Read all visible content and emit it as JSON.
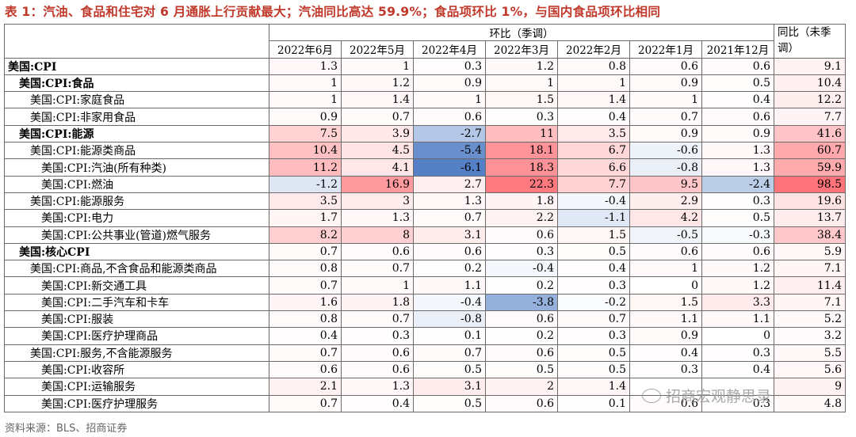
{
  "title": "表 1：汽油、食品和住宅对 6 月通胀上行贡献最大；汽油同比高达 59.9%；食品项环比 1%，与国内食品项环比相同",
  "header": {
    "group_label": "环比（季调）",
    "yoy_label": "同比（未季调）",
    "columns": [
      "2022年6月",
      "2022年5月",
      "2022年4月",
      "2022年3月",
      "2022年2月",
      "2022年1月",
      "2021年12月"
    ]
  },
  "rows": [
    {
      "label": "美国:CPI",
      "level": 0,
      "bold": true,
      "mom": [
        "1.3",
        "1",
        "0.3",
        "1.2",
        "0.8",
        "0.6",
        "0.6"
      ],
      "yoy": "9.1"
    },
    {
      "label": "美国:CPI:食品",
      "level": 1,
      "bold": true,
      "mom": [
        "1",
        "1.2",
        "0.9",
        "1",
        "1",
        "0.9",
        "0.5"
      ],
      "yoy": "10.4"
    },
    {
      "label": "美国:CPI:家庭食品",
      "level": 2,
      "bold": false,
      "mom": [
        "1",
        "1.4",
        "1",
        "1.5",
        "1.4",
        "1",
        "0.4"
      ],
      "yoy": "12.2"
    },
    {
      "label": "美国:CPI:非家用食品",
      "level": 2,
      "bold": false,
      "mom": [
        "0.9",
        "0.7",
        "0.6",
        "0.3",
        "0.4",
        "0.7",
        "0.6"
      ],
      "yoy": "7.7"
    },
    {
      "label": "美国:CPI:能源",
      "level": 1,
      "bold": true,
      "mom": [
        "7.5",
        "3.9",
        "-2.7",
        "11",
        "3.5",
        "0.9",
        "0.9"
      ],
      "yoy": "41.6"
    },
    {
      "label": "美国:CPI:能源类商品",
      "level": 2,
      "bold": false,
      "mom": [
        "10.4",
        "4.5",
        "-5.4",
        "18.1",
        "6.7",
        "-0.6",
        "1.3"
      ],
      "yoy": "60.7"
    },
    {
      "label": "美国:CPI:汽油(所有种类)",
      "level": 3,
      "bold": false,
      "mom": [
        "11.2",
        "4.1",
        "-6.1",
        "18.3",
        "6.6",
        "-0.8",
        "1.3"
      ],
      "yoy": "59.9"
    },
    {
      "label": "美国:CPI:燃油",
      "level": 3,
      "bold": false,
      "mom": [
        "-1.2",
        "16.9",
        "2.7",
        "22.3",
        "7.7",
        "9.5",
        "-2.4"
      ],
      "yoy": "98.5"
    },
    {
      "label": "美国:CPI:能源服务",
      "level": 2,
      "bold": false,
      "mom": [
        "3.5",
        "3",
        "1.3",
        "1.8",
        "-0.4",
        "2.9",
        "0.3"
      ],
      "yoy": "19.6"
    },
    {
      "label": "美国:CPI:电力",
      "level": 3,
      "bold": false,
      "mom": [
        "1.7",
        "1.3",
        "0.7",
        "2.2",
        "-1.1",
        "4.2",
        "0.5"
      ],
      "yoy": "13.7"
    },
    {
      "label": "美国:CPI:公共事业(管道)燃气服务",
      "level": 3,
      "bold": false,
      "mom": [
        "8.2",
        "8",
        "3.1",
        "0.6",
        "1.5",
        "-0.5",
        "-0.3"
      ],
      "yoy": "38.4"
    },
    {
      "label": "美国:核心CPI",
      "level": 1,
      "bold": true,
      "mom": [
        "0.7",
        "0.6",
        "0.6",
        "0.3",
        "0.5",
        "0.6",
        "0.6"
      ],
      "yoy": "5.9"
    },
    {
      "label": "美国:CPI:商品,不含食品和能源类商品",
      "level": 2,
      "bold": false,
      "mom": [
        "0.8",
        "0.7",
        "0.2",
        "-0.4",
        "0.4",
        "1",
        "1.2"
      ],
      "yoy": "7.1"
    },
    {
      "label": "美国:CPI:新交通工具",
      "level": 3,
      "bold": false,
      "mom": [
        "0.7",
        "1",
        "1.1",
        "0.2",
        "0.3",
        "0",
        "1.2"
      ],
      "yoy": "11.4"
    },
    {
      "label": "美国:CPI:二手汽车和卡车",
      "level": 3,
      "bold": false,
      "mom": [
        "1.6",
        "1.8",
        "-0.4",
        "-3.8",
        "-0.2",
        "1.5",
        "3.3"
      ],
      "yoy": "7.1"
    },
    {
      "label": "美国:CPI:服装",
      "level": 3,
      "bold": false,
      "mom": [
        "0.8",
        "0.7",
        "-0.8",
        "0.6",
        "0.7",
        "1.1",
        "1.1"
      ],
      "yoy": "5.2"
    },
    {
      "label": "美国:CPI:医疗护理商品",
      "level": 3,
      "bold": false,
      "mom": [
        "0.4",
        "0.3",
        "0.1",
        "0.2",
        "0.3",
        "0.9",
        "0"
      ],
      "yoy": "3.2"
    },
    {
      "label": "美国:CPI:服务,不含能源服务",
      "level": 2,
      "bold": false,
      "mom": [
        "0.7",
        "0.6",
        "0.7",
        "0.6",
        "0.5",
        "0.4",
        "0.3"
      ],
      "yoy": "5.5"
    },
    {
      "label": "美国:CPI:收容所",
      "level": 3,
      "bold": false,
      "mom": [
        "0.6",
        "0.6",
        "0.5",
        "0.5",
        "0.5",
        "0.3",
        "0.4"
      ],
      "yoy": "5.6"
    },
    {
      "label": "美国:CPI:运输服务",
      "level": 3,
      "bold": false,
      "mom": [
        "2.1",
        "1.3",
        "3.1",
        "2",
        "1.4",
        "",
        ""
      ],
      "yoy": "9"
    },
    {
      "label": "美国:CPI:医疗护理服务",
      "level": 3,
      "bold": false,
      "mom": [
        "0.7",
        "0.4",
        "0.5",
        "0.6",
        "0.1",
        "0.6",
        "0.3"
      ],
      "yoy": "4.8"
    }
  ],
  "source": "资料来源：BLS、招商证券",
  "watermark": "招商宏观静思录",
  "colors": {
    "positive": "#f0646a",
    "negative": "#4a78c2",
    "title": "#c0392b"
  }
}
